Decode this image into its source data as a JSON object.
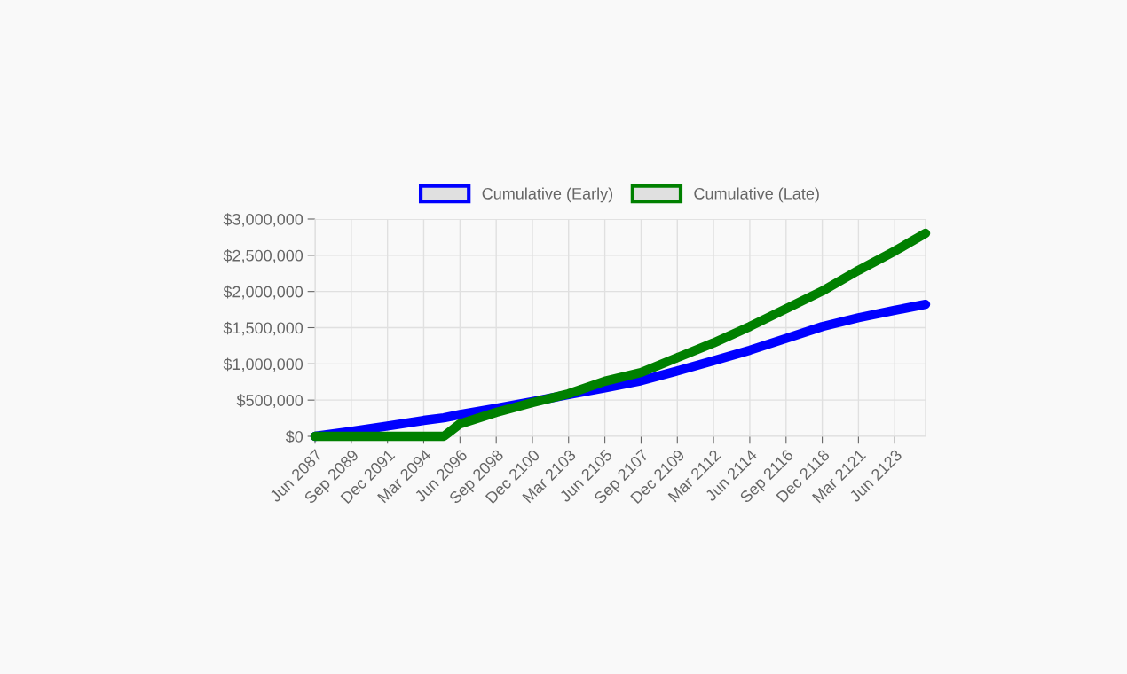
{
  "chart_data": {
    "type": "line",
    "x": [
      "2087-06",
      "2089-09",
      "2091-12",
      "2094-03",
      "2095-06",
      "2096-06",
      "2098-09",
      "2100-12",
      "2103-03",
      "2105-06",
      "2107-09",
      "2109-12",
      "2112-03",
      "2114-06",
      "2116-09",
      "2118-12",
      "2121-03",
      "2123-06",
      "2125-05"
    ],
    "series": [
      {
        "name": "Cumulative (Early)",
        "color": "#0000ff",
        "values": [
          0,
          69000,
          142000,
          220000,
          255000,
          301000,
          387000,
          478000,
          576000,
          670000,
          768000,
          903000,
          1045000,
          1189000,
          1352000,
          1516000,
          1638000,
          1740000,
          1822000
        ]
      },
      {
        "name": "Cumulative (Late)",
        "color": "#008000",
        "values": [
          0,
          0,
          0,
          0,
          0,
          172000,
          331000,
          466000,
          588000,
          760000,
          882000,
          1087000,
          1290000,
          1516000,
          1761000,
          2006000,
          2292000,
          2558000,
          2803000
        ]
      }
    ],
    "xlim": [
      "2087-06",
      "2125-05"
    ],
    "xticks": [
      {
        "value": "2087-06",
        "label": "Jun 2087"
      },
      {
        "value": "2089-09",
        "label": "Sep 2089"
      },
      {
        "value": "2091-12",
        "label": "Dec 2091"
      },
      {
        "value": "2094-03",
        "label": "Mar 2094"
      },
      {
        "value": "2096-06",
        "label": "Jun 2096"
      },
      {
        "value": "2098-09",
        "label": "Sep 2098"
      },
      {
        "value": "2100-12",
        "label": "Dec 2100"
      },
      {
        "value": "2103-03",
        "label": "Mar 2103"
      },
      {
        "value": "2105-06",
        "label": "Jun 2105"
      },
      {
        "value": "2107-09",
        "label": "Sep 2107"
      },
      {
        "value": "2109-12",
        "label": "Dec 2109"
      },
      {
        "value": "2112-03",
        "label": "Mar 2112"
      },
      {
        "value": "2114-06",
        "label": "Jun 2114"
      },
      {
        "value": "2116-09",
        "label": "Sep 2116"
      },
      {
        "value": "2118-12",
        "label": "Dec 2118"
      },
      {
        "value": "2121-03",
        "label": "Mar 2121"
      },
      {
        "value": "2123-06",
        "label": "Jun 2123"
      }
    ],
    "ylim": [
      0,
      3000000
    ],
    "yticks": [
      {
        "value": 0,
        "label": "$0"
      },
      {
        "value": 500000,
        "label": "$500,000"
      },
      {
        "value": 1000000,
        "label": "$1,000,000"
      },
      {
        "value": 1500000,
        "label": "$1,500,000"
      },
      {
        "value": 2000000,
        "label": "$2,000,000"
      },
      {
        "value": 2500000,
        "label": "$2,500,000"
      },
      {
        "value": 3000000,
        "label": "$3,000,000"
      }
    ],
    "grid": true,
    "legend": "top",
    "marker": "none",
    "line_style": "solid"
  }
}
